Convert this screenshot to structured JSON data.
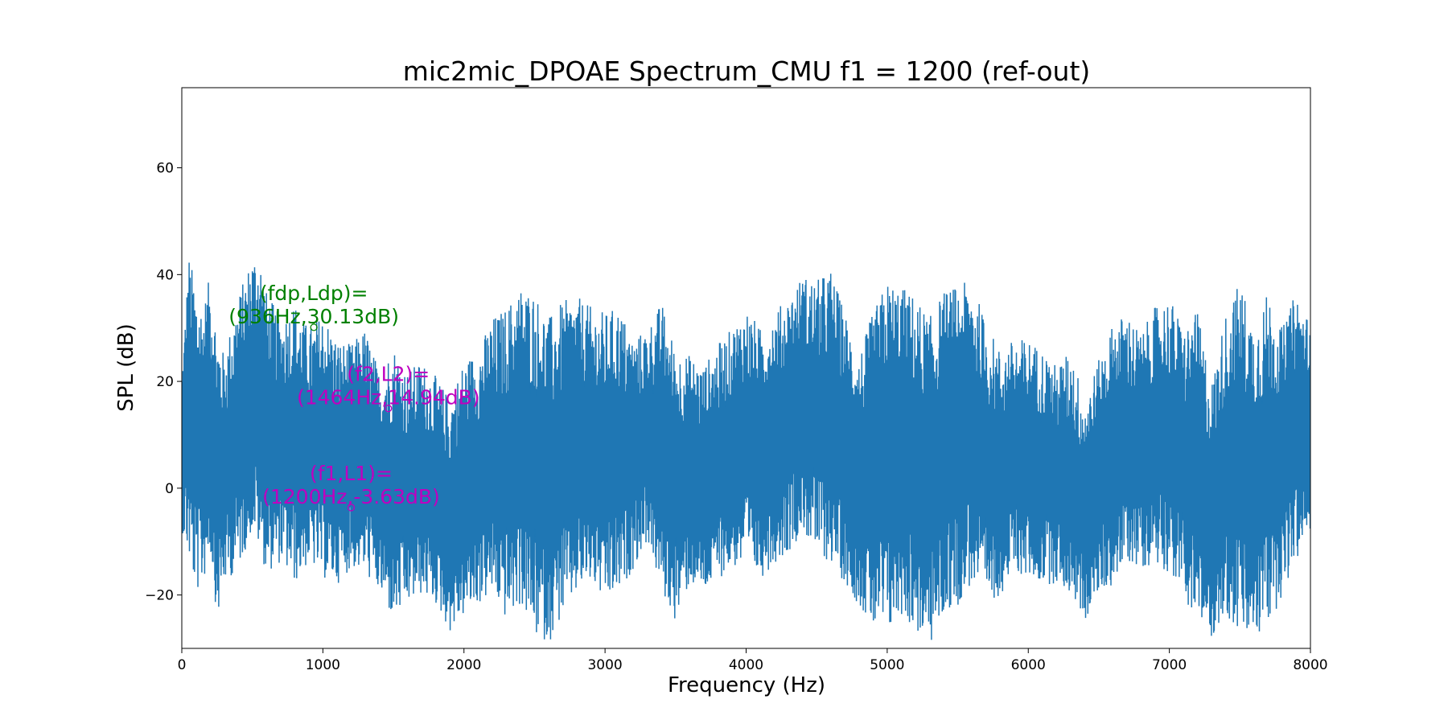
{
  "chart_data": {
    "type": "line",
    "title": "mic2mic_DPOAE Spectrum_CMU f1 = 1200 (ref-out)",
    "xlabel": "Frequency (Hz)",
    "ylabel": "SPL (dB)",
    "xlim": [
      0,
      8000
    ],
    "ylim": [
      -30,
      75
    ],
    "xticks": [
      0,
      1000,
      2000,
      3000,
      4000,
      5000,
      6000,
      7000,
      8000
    ],
    "yticks": [
      -20,
      0,
      20,
      40,
      60
    ],
    "grid": false,
    "series": [
      {
        "color": "#1f77b4",
        "envelope_x": [
          0,
          50,
          100,
          150,
          200,
          250,
          300,
          400,
          500,
          550,
          600,
          700,
          800,
          900,
          1000,
          1100,
          1200,
          1300,
          1400,
          1500,
          1600,
          1700,
          1800,
          1900,
          2000,
          2100,
          2200,
          2300,
          2400,
          2500,
          2600,
          2700,
          2800,
          2900,
          3000,
          3100,
          3200,
          3300,
          3400,
          3500,
          3600,
          3700,
          3800,
          3900,
          4000,
          4100,
          4200,
          4300,
          4400,
          4500,
          4600,
          4700,
          4800,
          4900,
          5000,
          5100,
          5200,
          5300,
          5400,
          5500,
          5600,
          5700,
          5800,
          5900,
          6000,
          6100,
          6200,
          6300,
          6400,
          6500,
          6600,
          6700,
          6800,
          6900,
          7000,
          7100,
          7200,
          7300,
          7400,
          7500,
          7600,
          7700,
          7800,
          7900,
          8000
        ],
        "envelope_upper": [
          22,
          44,
          38,
          34,
          40,
          30,
          25,
          36,
          44,
          45,
          37,
          32,
          35,
          30,
          33,
          28,
          27,
          30,
          22,
          27,
          22,
          24,
          21,
          17,
          24,
          26,
          32,
          34,
          38,
          37,
          32,
          35,
          36,
          34,
          33,
          34,
          28,
          30,
          35,
          26,
          25,
          23,
          27,
          30,
          34,
          30,
          33,
          36,
          40,
          39,
          41,
          33,
          25,
          33,
          39,
          38,
          36,
          32,
          37,
          38,
          39,
          31,
          26,
          28,
          28,
          26,
          23,
          26,
          17,
          24,
          31,
          33,
          29,
          34,
          36,
          30,
          33,
          20,
          33,
          39,
          31,
          37,
          30,
          37,
          31
        ],
        "envelope_lower": [
          -8,
          -14,
          -20,
          -18,
          -12,
          -25,
          -18,
          -15,
          -8,
          -12,
          -16,
          -14,
          -18,
          -14,
          -17,
          -18,
          -15,
          -16,
          -20,
          -25,
          -22,
          -20,
          -22,
          -27,
          -24,
          -22,
          -20,
          -25,
          -22,
          -28,
          -29,
          -24,
          -20,
          -18,
          -22,
          -20,
          -15,
          -10,
          -20,
          -25,
          -18,
          -20,
          -17,
          -15,
          -15,
          -17,
          -14,
          -12,
          -8,
          -13,
          -14,
          -18,
          -22,
          -27,
          -28,
          -24,
          -27,
          -30,
          -24,
          -22,
          -18,
          -22,
          -20,
          -16,
          -17,
          -18,
          -18,
          -20,
          -25,
          -20,
          -18,
          -14,
          -15,
          -14,
          -16,
          -20,
          -26,
          -28,
          -24,
          -28,
          -29,
          -26,
          -20,
          -14,
          -8
        ]
      }
    ],
    "annotations": [
      {
        "line1": "(fdp,Ldp)=",
        "line2": "(936Hz,30.13dB)",
        "x": 936,
        "y": 30.13,
        "color": "#008000"
      },
      {
        "line1": "(f2,L2)=",
        "line2": "(1464Hz,14.94dB)",
        "x": 1464,
        "y": 14.94,
        "color": "#bf00bf"
      },
      {
        "line1": "(f1,L1)=",
        "line2": "(1200Hz,-3.63dB)",
        "x": 1200,
        "y": -3.63,
        "color": "#bf00bf"
      }
    ]
  }
}
